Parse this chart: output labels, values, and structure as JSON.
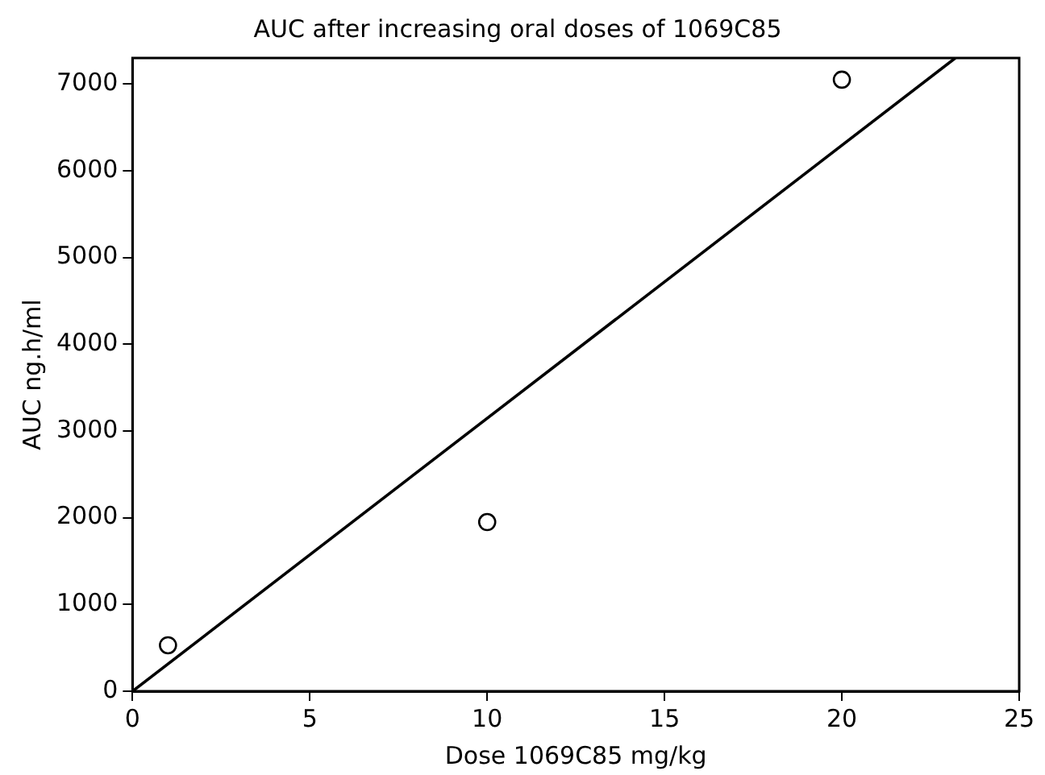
{
  "chart_data": {
    "type": "scatter",
    "title": "AUC after increasing oral doses of 1069C85",
    "xlabel": "Dose 1069C85 mg/kg",
    "ylabel": "AUC ng.h/ml",
    "xlim": [
      0,
      25
    ],
    "xticks": [
      0,
      5,
      10,
      15,
      20,
      25
    ],
    "ylim": [
      0,
      7300
    ],
    "yticks": [
      0,
      1000,
      2000,
      3000,
      4000,
      5000,
      6000,
      7000
    ],
    "grid": false,
    "legend": false,
    "marker": "circle",
    "series": [
      {
        "type": "scatter",
        "color": "#000000",
        "x": [
          1,
          10,
          20
        ],
        "values": [
          530,
          1950,
          7050
        ]
      },
      {
        "type": "line",
        "color": "#000000",
        "x": [
          0,
          23.2
        ],
        "values": [
          0,
          7300
        ],
        "marker": "none"
      }
    ]
  }
}
